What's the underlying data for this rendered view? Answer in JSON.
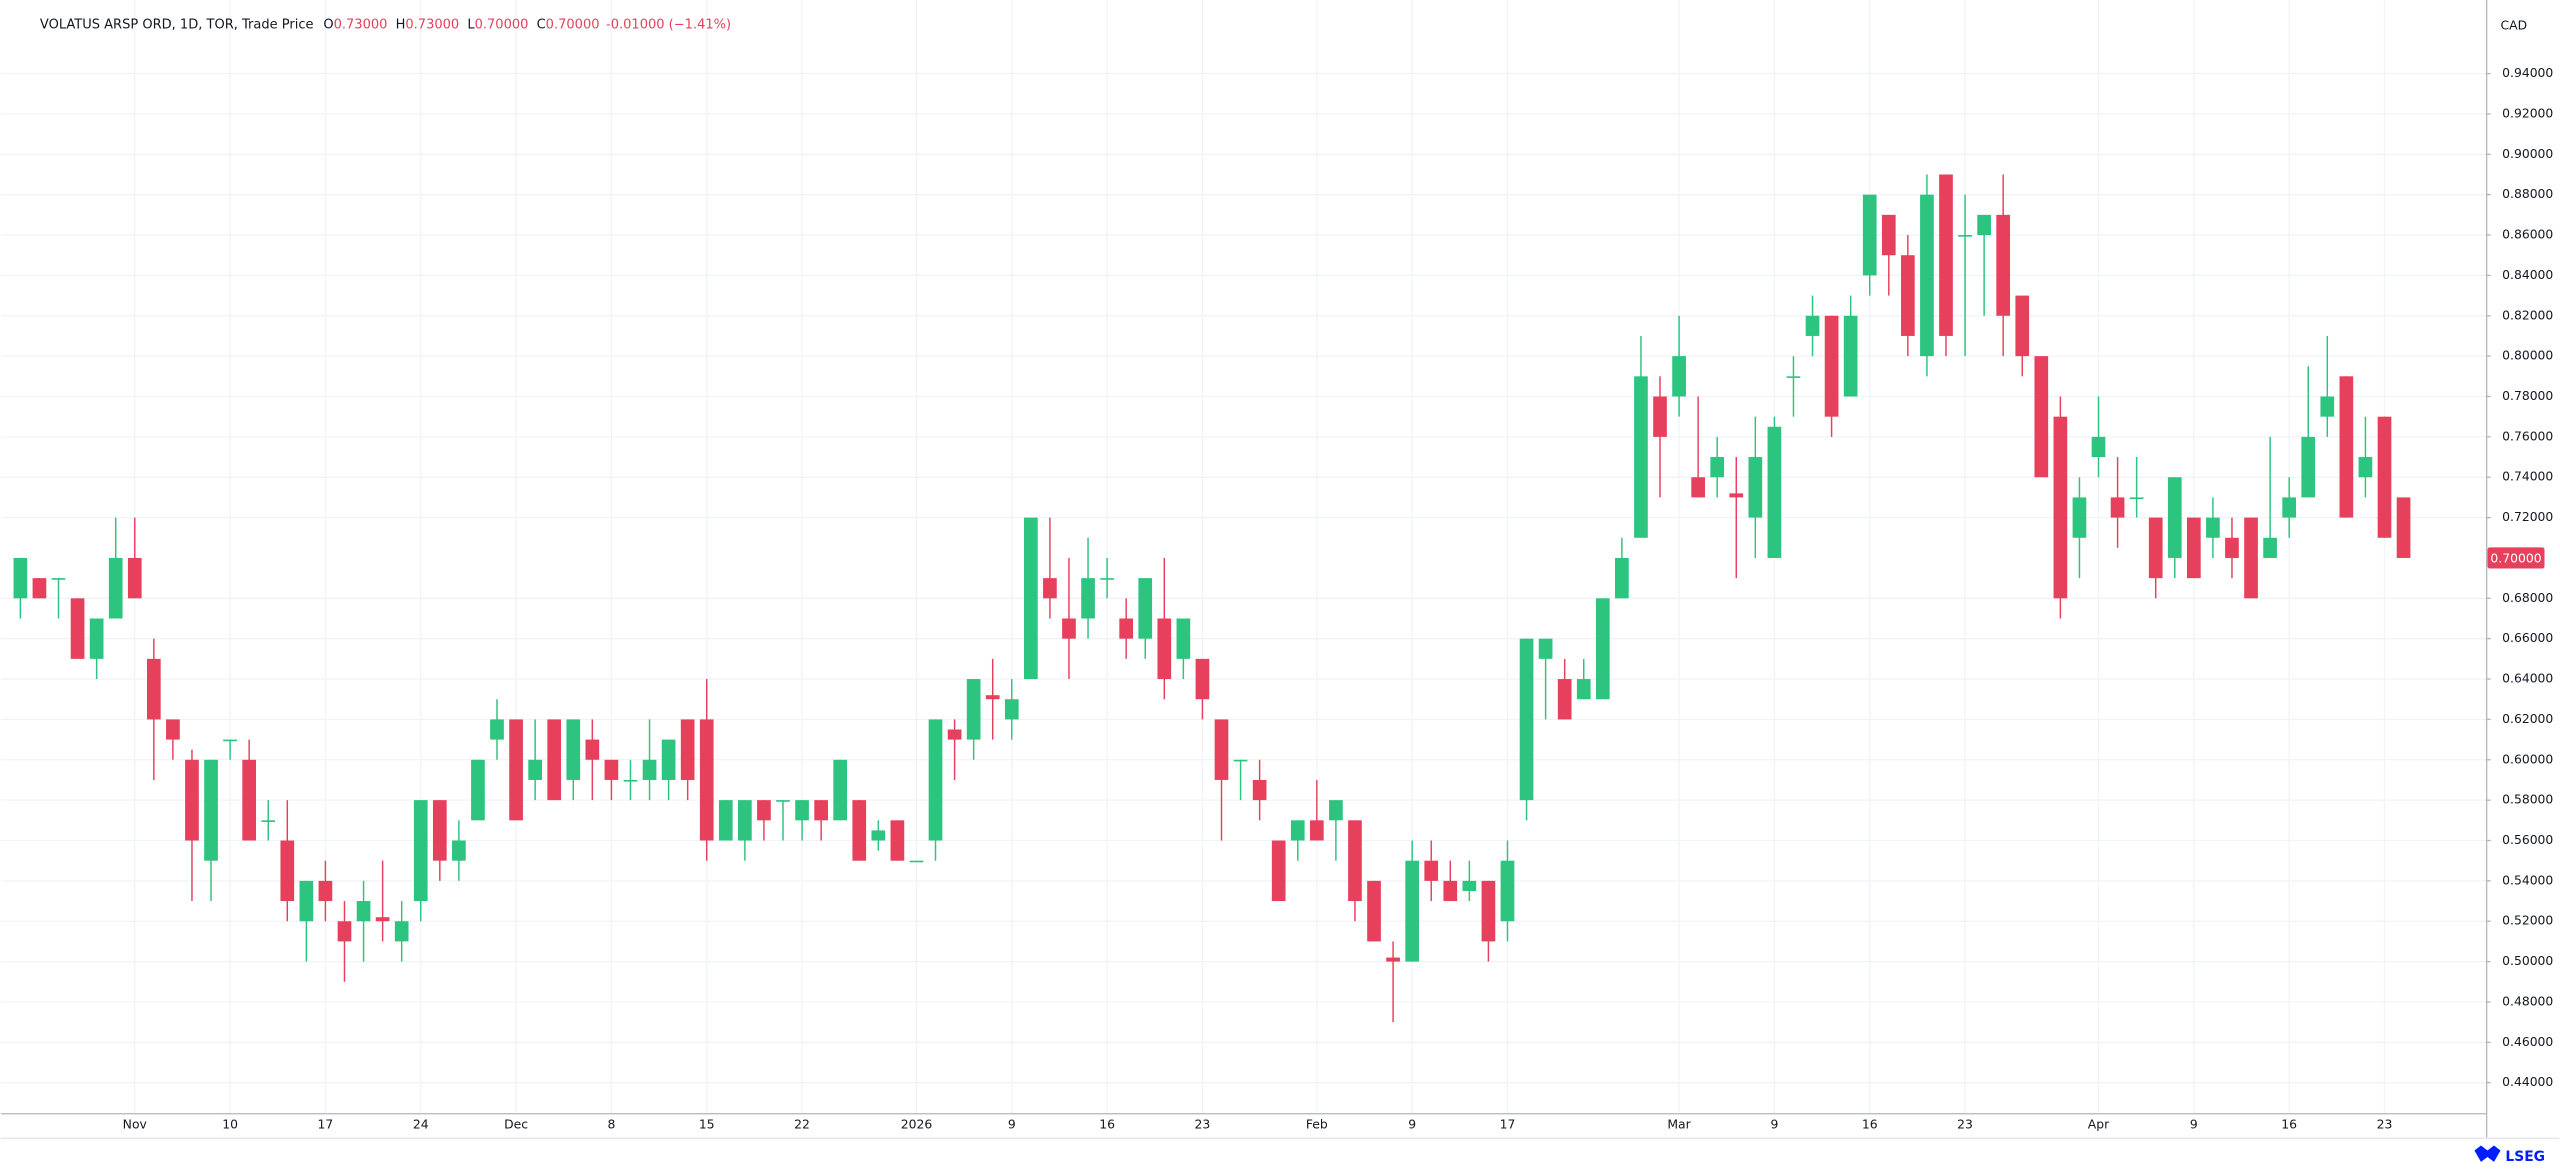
{
  "chart_data": {
    "type": "candlestick",
    "title": "VOLATUS ARSP ORD, 1D, TOR, Trade Price",
    "ohlc": [
      {
        "key": "O",
        "value": "0.73000"
      },
      {
        "key": "H",
        "value": "0.73000"
      },
      {
        "key": "L",
        "value": "0.70000"
      },
      {
        "key": "C",
        "value": "0.70000"
      }
    ],
    "change": "-0.01000 (−1.41%)",
    "currency": "CAD",
    "logo": "LSEG",
    "last_price": {
      "value": 0.7,
      "label": "0.70000"
    },
    "up_color": "#2cc47f",
    "down_color": "#e7405c",
    "grid": true,
    "ylim": [
      0.425,
      0.97
    ],
    "yticks": [
      {
        "value": 0.44,
        "label": "0.44000"
      },
      {
        "value": 0.46,
        "label": "0.46000"
      },
      {
        "value": 0.48,
        "label": "0.48000"
      },
      {
        "value": 0.5,
        "label": "0.50000"
      },
      {
        "value": 0.52,
        "label": "0.52000"
      },
      {
        "value": 0.54,
        "label": "0.54000"
      },
      {
        "value": 0.56,
        "label": "0.56000"
      },
      {
        "value": 0.58,
        "label": "0.58000"
      },
      {
        "value": 0.6,
        "label": "0.60000"
      },
      {
        "value": 0.62,
        "label": "0.62000"
      },
      {
        "value": 0.64,
        "label": "0.64000"
      },
      {
        "value": 0.66,
        "label": "0.66000"
      },
      {
        "value": 0.68,
        "label": "0.68000"
      },
      {
        "value": 0.72,
        "label": "0.72000"
      },
      {
        "value": 0.74,
        "label": "0.74000"
      },
      {
        "value": 0.76,
        "label": "0.76000"
      },
      {
        "value": 0.78,
        "label": "0.78000"
      },
      {
        "value": 0.8,
        "label": "0.80000"
      },
      {
        "value": 0.82,
        "label": "0.82000"
      },
      {
        "value": 0.84,
        "label": "0.84000"
      },
      {
        "value": 0.86,
        "label": "0.86000"
      },
      {
        "value": 0.88,
        "label": "0.88000"
      },
      {
        "value": 0.9,
        "label": "0.90000"
      },
      {
        "value": 0.92,
        "label": "0.92000"
      },
      {
        "value": 0.94,
        "label": "0.94000"
      }
    ],
    "categories": [
      null,
      null,
      null,
      null,
      null,
      null,
      "Nov",
      null,
      null,
      null,
      null,
      "10",
      null,
      null,
      null,
      null,
      "17",
      null,
      null,
      null,
      null,
      "24",
      null,
      null,
      null,
      null,
      "Dec",
      null,
      null,
      null,
      null,
      "8",
      null,
      null,
      null,
      null,
      "15",
      null,
      null,
      null,
      null,
      "22",
      null,
      null,
      null,
      null,
      null,
      "2026",
      null,
      null,
      null,
      null,
      "9",
      null,
      null,
      null,
      null,
      "16",
      null,
      null,
      null,
      null,
      "23",
      null,
      null,
      null,
      null,
      null,
      "Feb",
      null,
      null,
      null,
      null,
      "9",
      null,
      null,
      null,
      null,
      "17",
      null,
      null,
      null,
      null,
      null,
      null,
      null,
      null,
      "Mar",
      null,
      null,
      null,
      null,
      "9",
      null,
      null,
      null,
      null,
      "16",
      null,
      null,
      null,
      null,
      "23",
      null,
      null,
      null,
      null,
      null,
      null,
      "Apr",
      null,
      null,
      null,
      null,
      "9",
      null,
      null,
      null,
      null,
      "16",
      null,
      null,
      null,
      null,
      "23",
      null
    ],
    "open": [
      0.68,
      0.69,
      0.69,
      0.68,
      0.65,
      0.67,
      0.7,
      0.65,
      0.62,
      0.6,
      0.55,
      0.61,
      0.6,
      0.57,
      0.56,
      0.52,
      0.54,
      0.52,
      0.52,
      0.522,
      0.51,
      0.53,
      0.58,
      0.55,
      0.57,
      0.61,
      0.62,
      0.59,
      0.62,
      0.59,
      0.61,
      0.6,
      0.59,
      0.59,
      0.59,
      0.62,
      0.62,
      0.56,
      0.56,
      0.58,
      0.58,
      0.57,
      0.58,
      0.57,
      0.58,
      0.56,
      0.57,
      0.55,
      0.56,
      0.615,
      0.61,
      0.632,
      0.62,
      0.64,
      0.69,
      0.67,
      0.67,
      0.69,
      0.67,
      0.66,
      0.67,
      0.65,
      0.65,
      0.62,
      0.6,
      0.59,
      0.56,
      0.56,
      0.57,
      0.57,
      0.57,
      0.54,
      0.502,
      0.5,
      0.55,
      0.54,
      0.535,
      0.54,
      0.52,
      0.58,
      0.65,
      0.64,
      0.63,
      0.63,
      0.68,
      0.71,
      0.78,
      0.78,
      0.74,
      0.74,
      0.732,
      0.72,
      0.7,
      0.79,
      0.81,
      0.82,
      0.78,
      0.84,
      0.87,
      0.85,
      0.8,
      0.89,
      0.86,
      0.86,
      0.87,
      0.83,
      0.8,
      0.77,
      0.71,
      0.75,
      0.73,
      0.73,
      0.72,
      0.7,
      0.72,
      0.71,
      0.71,
      0.72,
      0.7,
      0.72,
      0.73,
      0.77,
      0.79,
      0.74,
      0.77,
      0.73
    ],
    "high": [
      0.7,
      0.69,
      0.69,
      0.68,
      0.67,
      0.72,
      0.72,
      0.66,
      0.62,
      0.605,
      0.6,
      0.61,
      0.61,
      0.58,
      0.58,
      0.54,
      0.55,
      0.53,
      0.54,
      0.55,
      0.53,
      0.58,
      0.58,
      0.57,
      0.6,
      0.63,
      0.62,
      0.62,
      0.62,
      0.62,
      0.62,
      0.6,
      0.6,
      0.62,
      0.61,
      0.62,
      0.64,
      0.58,
      0.58,
      0.58,
      0.58,
      0.58,
      0.58,
      0.6,
      0.58,
      0.57,
      0.57,
      0.55,
      0.62,
      0.62,
      0.64,
      0.65,
      0.64,
      0.72,
      0.72,
      0.7,
      0.71,
      0.7,
      0.68,
      0.69,
      0.7,
      0.67,
      0.65,
      0.62,
      0.6,
      0.6,
      0.56,
      0.57,
      0.59,
      0.58,
      0.57,
      0.54,
      0.51,
      0.56,
      0.56,
      0.55,
      0.55,
      0.54,
      0.56,
      0.66,
      0.66,
      0.65,
      0.65,
      0.68,
      0.71,
      0.81,
      0.79,
      0.82,
      0.78,
      0.76,
      0.75,
      0.77,
      0.77,
      0.8,
      0.83,
      0.82,
      0.83,
      0.88,
      0.87,
      0.86,
      0.89,
      0.89,
      0.88,
      0.87,
      0.89,
      0.83,
      0.8,
      0.78,
      0.74,
      0.78,
      0.75,
      0.75,
      0.72,
      0.74,
      0.72,
      0.73,
      0.72,
      0.72,
      0.76,
      0.74,
      0.795,
      0.81,
      0.79,
      0.77,
      0.77,
      0.73
    ],
    "low": [
      0.67,
      0.68,
      0.67,
      0.65,
      0.64,
      0.67,
      0.68,
      0.59,
      0.6,
      0.53,
      0.53,
      0.6,
      0.56,
      0.56,
      0.52,
      0.5,
      0.52,
      0.49,
      0.5,
      0.51,
      0.5,
      0.52,
      0.54,
      0.54,
      0.57,
      0.6,
      0.57,
      0.58,
      0.58,
      0.58,
      0.58,
      0.58,
      0.58,
      0.58,
      0.58,
      0.58,
      0.55,
      0.56,
      0.55,
      0.56,
      0.56,
      0.56,
      0.56,
      0.57,
      0.55,
      0.555,
      0.55,
      0.55,
      0.55,
      0.59,
      0.6,
      0.61,
      0.61,
      0.64,
      0.67,
      0.64,
      0.66,
      0.68,
      0.65,
      0.65,
      0.63,
      0.64,
      0.62,
      0.56,
      0.58,
      0.57,
      0.53,
      0.55,
      0.56,
      0.55,
      0.52,
      0.51,
      0.47,
      0.5,
      0.53,
      0.53,
      0.53,
      0.5,
      0.51,
      0.57,
      0.62,
      0.62,
      0.63,
      0.63,
      0.68,
      0.71,
      0.73,
      0.77,
      0.73,
      0.73,
      0.69,
      0.7,
      0.7,
      0.77,
      0.8,
      0.76,
      0.78,
      0.83,
      0.83,
      0.8,
      0.79,
      0.8,
      0.8,
      0.82,
      0.8,
      0.79,
      0.74,
      0.67,
      0.69,
      0.74,
      0.705,
      0.72,
      0.68,
      0.69,
      0.69,
      0.7,
      0.69,
      0.68,
      0.7,
      0.71,
      0.73,
      0.76,
      0.72,
      0.73,
      0.71,
      0.7
    ],
    "close": [
      0.7,
      0.68,
      0.69,
      0.65,
      0.67,
      0.7,
      0.68,
      0.62,
      0.61,
      0.56,
      0.6,
      0.61,
      0.56,
      0.57,
      0.53,
      0.54,
      0.53,
      0.51,
      0.53,
      0.52,
      0.52,
      0.58,
      0.55,
      0.56,
      0.6,
      0.62,
      0.57,
      0.6,
      0.58,
      0.62,
      0.6,
      0.59,
      0.59,
      0.6,
      0.61,
      0.59,
      0.56,
      0.58,
      0.58,
      0.57,
      0.58,
      0.58,
      0.57,
      0.6,
      0.55,
      0.565,
      0.55,
      0.55,
      0.62,
      0.61,
      0.64,
      0.63,
      0.63,
      0.72,
      0.68,
      0.66,
      0.69,
      0.69,
      0.66,
      0.69,
      0.64,
      0.67,
      0.63,
      0.59,
      0.6,
      0.58,
      0.53,
      0.57,
      0.56,
      0.58,
      0.53,
      0.51,
      0.5,
      0.55,
      0.54,
      0.53,
      0.54,
      0.51,
      0.55,
      0.66,
      0.66,
      0.62,
      0.64,
      0.68,
      0.7,
      0.79,
      0.76,
      0.8,
      0.73,
      0.75,
      0.73,
      0.75,
      0.765,
      0.79,
      0.82,
      0.77,
      0.82,
      0.88,
      0.85,
      0.81,
      0.88,
      0.81,
      0.86,
      0.87,
      0.82,
      0.8,
      0.74,
      0.68,
      0.73,
      0.76,
      0.72,
      0.73,
      0.69,
      0.74,
      0.69,
      0.72,
      0.7,
      0.68,
      0.71,
      0.73,
      0.76,
      0.78,
      0.72,
      0.75,
      0.71,
      0.7
    ]
  }
}
